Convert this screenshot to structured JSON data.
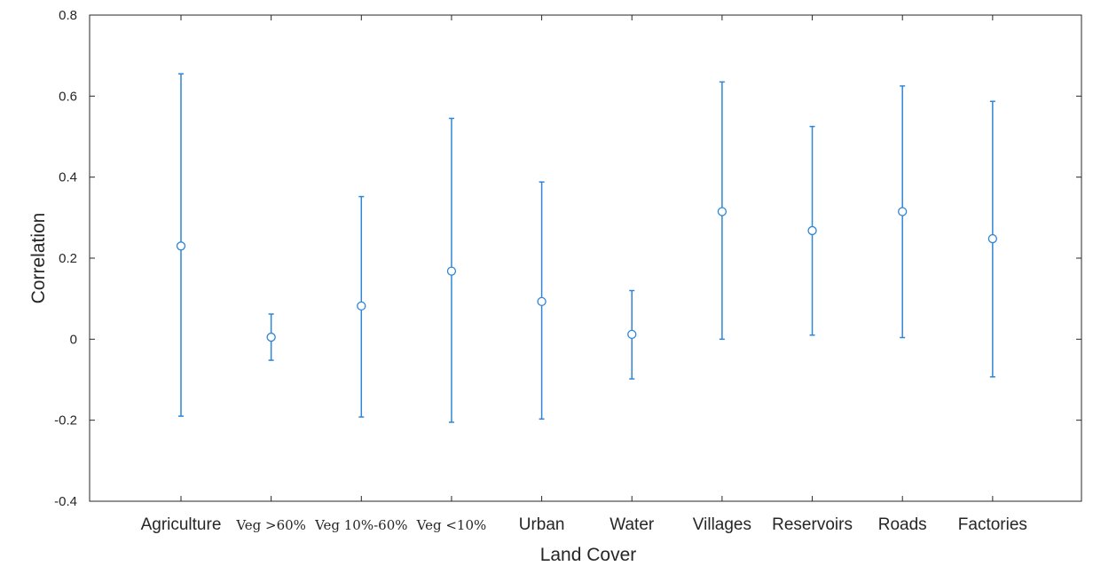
{
  "chart_data": {
    "type": "errorbar",
    "title": "",
    "xlabel": "Land Cover",
    "ylabel": "Correlation",
    "ylim": [
      -0.4,
      0.8
    ],
    "yticks": [
      -0.4,
      -0.2,
      0,
      0.2,
      0.4,
      0.6,
      0.8
    ],
    "ytick_labels": [
      "-0.4",
      "-0.2",
      "0",
      "0.2",
      "0.4",
      "0.6",
      "0.8"
    ],
    "categories": [
      "Agriculture",
      "Veg >60%",
      "Veg 10%-60%",
      "Veg <10%",
      "Urban",
      "Water",
      "Villages",
      "Reservoirs",
      "Roads",
      "Factories"
    ],
    "values": [
      0.23,
      0.005,
      0.082,
      0.168,
      0.093,
      0.012,
      0.315,
      0.268,
      0.315,
      0.248
    ],
    "lower": [
      -0.19,
      -0.052,
      -0.192,
      -0.205,
      -0.197,
      -0.098,
      0.0,
      0.01,
      0.004,
      -0.093
    ],
    "upper": [
      0.655,
      0.062,
      0.352,
      0.545,
      0.388,
      0.12,
      0.635,
      0.525,
      0.625,
      0.587
    ],
    "grid": false,
    "marker": "circle",
    "color": "#2f86d6"
  }
}
